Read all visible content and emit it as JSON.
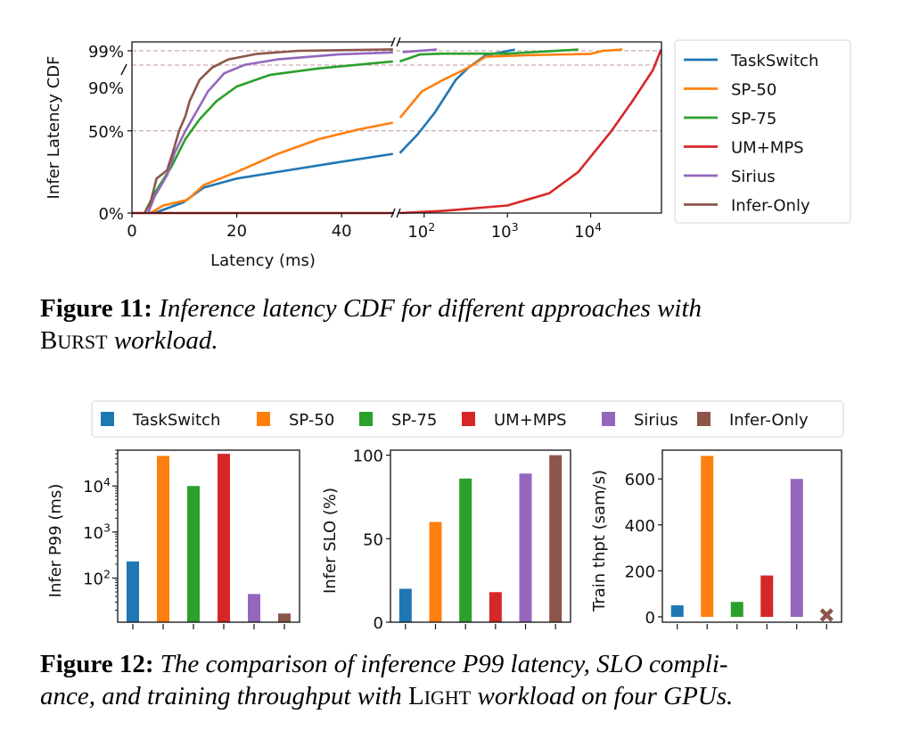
{
  "chart_data": [
    {
      "type": "line",
      "title": "",
      "xlabel": "Latency (ms)",
      "ylabel": "Infer Latency CDF",
      "x_scale": "linear 0-50 ms, broken, then log 50-70000 ms",
      "x_ticks_linear": [
        {
          "label": "0",
          "value": 0
        },
        {
          "label": "20",
          "value": 20
        },
        {
          "label": "40",
          "value": 40
        }
      ],
      "x_ticks_log": [
        {
          "base": "10",
          "exp": "2",
          "value": 100
        },
        {
          "base": "10",
          "exp": "3",
          "value": 1000
        },
        {
          "base": "10",
          "exp": "4",
          "value": 10000
        }
      ],
      "y_ticks": [
        {
          "label": "0%",
          "value": 0
        },
        {
          "label": "50%",
          "value": 0.5
        },
        {
          "label": "90%",
          "value": 0.9
        },
        {
          "label": "99%",
          "value": 0.99
        }
      ],
      "reference_lines": [
        0.5,
        0.9,
        0.99
      ],
      "legend_position": "right-outside",
      "series": [
        {
          "name": "TaskSwitch",
          "color": "#1f77b4",
          "points": [
            [
              4.3,
              0
            ],
            [
              9.8,
              0.065
            ],
            [
              13.7,
              0.155
            ],
            [
              20,
              0.21
            ],
            [
              27.8,
              0.25
            ],
            [
              39.6,
              0.31
            ],
            [
              49.8,
              0.36
            ],
            [
              51,
              0.365
            ],
            [
              84,
              0.48
            ],
            [
              134,
              0.61
            ],
            [
              240,
              0.81
            ],
            [
              341,
              0.885
            ],
            [
              545,
              0.962
            ],
            [
              1230,
              0.998
            ]
          ]
        },
        {
          "name": "SP-50",
          "color": "#ff7f0e",
          "points": [
            [
              3.5,
              0
            ],
            [
              5.9,
              0.045
            ],
            [
              10.6,
              0.08
            ],
            [
              13.7,
              0.17
            ],
            [
              20,
              0.25
            ],
            [
              27.8,
              0.36
            ],
            [
              35.7,
              0.45
            ],
            [
              43.5,
              0.51
            ],
            [
              49.8,
              0.55
            ],
            [
              51.4,
              0.58
            ],
            [
              94,
              0.74
            ],
            [
              169,
              0.81
            ],
            [
              341,
              0.885
            ],
            [
              545,
              0.953
            ],
            [
              1740,
              0.962
            ],
            [
              10070,
              0.971
            ],
            [
              14000,
              0.99
            ],
            [
              24000,
              0.998
            ]
          ]
        },
        {
          "name": "SP-75",
          "color": "#2ca02c",
          "points": [
            [
              2.4,
              0
            ],
            [
              4.3,
              0.12
            ],
            [
              7.5,
              0.28
            ],
            [
              10.2,
              0.45
            ],
            [
              12.9,
              0.57
            ],
            [
              16.1,
              0.68
            ],
            [
              20,
              0.77
            ],
            [
              26.3,
              0.84
            ],
            [
              35.7,
              0.88
            ],
            [
              49.8,
              0.923
            ],
            [
              51,
              0.923
            ],
            [
              89,
              0.967
            ],
            [
              169,
              0.972
            ],
            [
              1000,
              0.972
            ],
            [
              7100,
              0.998
            ]
          ]
        },
        {
          "name": "UM+MPS",
          "color": "#d62728",
          "points": [
            [
              0,
              0
            ],
            [
              50,
              0
            ],
            [
              51,
              0
            ],
            [
              169,
              0.013
            ],
            [
              1000,
              0.046
            ],
            [
              3160,
              0.12
            ],
            [
              7100,
              0.25
            ],
            [
              17800,
              0.5
            ],
            [
              31600,
              0.68
            ],
            [
              56000,
              0.87
            ],
            [
              70000,
              0.998
            ]
          ]
        },
        {
          "name": "Sirius",
          "color": "#9467bd",
          "points": [
            [
              3.1,
              0
            ],
            [
              4.3,
              0.1
            ],
            [
              6.7,
              0.23
            ],
            [
              8.2,
              0.37
            ],
            [
              10.2,
              0.5
            ],
            [
              12.2,
              0.61
            ],
            [
              14.5,
              0.74
            ],
            [
              17.6,
              0.85
            ],
            [
              21.6,
              0.902
            ],
            [
              27.8,
              0.936
            ],
            [
              39.6,
              0.968
            ],
            [
              49.8,
              0.98
            ],
            [
              55,
              0.982
            ],
            [
              142,
              0.998
            ]
          ]
        },
        {
          "name": "Infer-Only",
          "color": "#8c564b",
          "points": [
            [
              2.4,
              0
            ],
            [
              3.5,
              0.06
            ],
            [
              4.7,
              0.21
            ],
            [
              6.7,
              0.26
            ],
            [
              7.8,
              0.37
            ],
            [
              9,
              0.5
            ],
            [
              10.2,
              0.59
            ],
            [
              11,
              0.68
            ],
            [
              12.9,
              0.81
            ],
            [
              15.3,
              0.885
            ],
            [
              18.4,
              0.936
            ],
            [
              23.9,
              0.971
            ],
            [
              31.8,
              0.99
            ],
            [
              49.8,
              0.999
            ],
            [
              66,
              1.0
            ]
          ]
        }
      ]
    },
    {
      "type": "bar",
      "ylabel": "Infer P99 (ms)",
      "y_scale": "log",
      "ylim": [
        11,
        60000
      ],
      "y_ticks": [
        {
          "base": "10",
          "exp": "2",
          "value": 100
        },
        {
          "base": "10",
          "exp": "3",
          "value": 1000
        },
        {
          "base": "10",
          "exp": "4",
          "value": 10000
        }
      ],
      "categories": [
        "TaskSwitch",
        "SP-50",
        "SP-75",
        "UM+MPS",
        "Sirius",
        "Infer-Only"
      ],
      "values": [
        230,
        45000,
        10000,
        50000,
        45,
        17
      ]
    },
    {
      "type": "bar",
      "ylabel": "Infer SLO (%)",
      "ylim": [
        0,
        103
      ],
      "y_ticks": [
        {
          "label": "0",
          "value": 0
        },
        {
          "label": "50",
          "value": 50
        },
        {
          "label": "100",
          "value": 100
        }
      ],
      "categories": [
        "TaskSwitch",
        "SP-50",
        "SP-75",
        "UM+MPS",
        "Sirius",
        "Infer-Only"
      ],
      "values": [
        20,
        60,
        86,
        18,
        89,
        100
      ]
    },
    {
      "type": "bar",
      "ylabel": "Train thpt (sam/s)",
      "ylim": [
        0,
        725
      ],
      "y_ticks": [
        {
          "label": "0",
          "value": 0
        },
        {
          "label": "200",
          "value": 200
        },
        {
          "label": "400",
          "value": 400
        },
        {
          "label": "600",
          "value": 600
        }
      ],
      "categories": [
        "TaskSwitch",
        "SP-50",
        "SP-75",
        "UM+MPS",
        "Sirius",
        "Infer-Only"
      ],
      "values": [
        50,
        700,
        65,
        180,
        600,
        0
      ],
      "annotations": [
        "Infer-Only marked with x (no training)"
      ]
    }
  ],
  "legend12": [
    "TaskSwitch",
    "SP-50",
    "SP-75",
    "UM+MPS",
    "Sirius",
    "Infer-Only"
  ],
  "colors": [
    "#1f77b4",
    "#ff7f0e",
    "#2ca02c",
    "#d62728",
    "#9467bd",
    "#8c564b"
  ],
  "captions": {
    "fig11": {
      "label": "Figure 11:",
      "line1": " Inference latency CDF for different approaches with",
      "sc_first": "B",
      "sc_rest": "URST",
      "line2_end": " workload."
    },
    "fig12": {
      "label": "Figure 12:",
      "line1": " The comparison of inference P99 latency, SLO compli-",
      "line2_start": "ance, and training throughput with ",
      "sc_first": "L",
      "sc_rest": "IGHT",
      "line2_end": " workload on four GPUs."
    }
  }
}
